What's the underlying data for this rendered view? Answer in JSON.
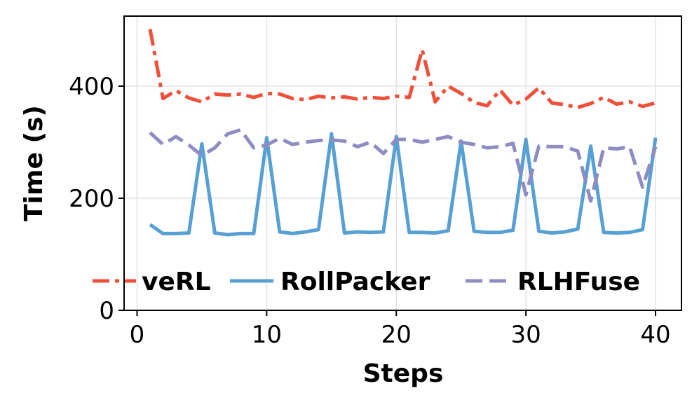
{
  "chart_data": {
    "type": "line",
    "title": "",
    "xlabel": "Steps",
    "ylabel": "Time (s)",
    "xlim": [
      -1,
      42
    ],
    "ylim": [
      0,
      525
    ],
    "xticks": [
      0,
      10,
      20,
      30,
      40
    ],
    "yticks": [
      0,
      200,
      400
    ],
    "grid": true,
    "legend_position": "lower-center",
    "x": [
      1,
      2,
      3,
      4,
      5,
      6,
      7,
      8,
      9,
      10,
      11,
      12,
      13,
      14,
      15,
      16,
      17,
      18,
      19,
      20,
      21,
      22,
      23,
      24,
      25,
      26,
      27,
      28,
      29,
      30,
      31,
      32,
      33,
      34,
      35,
      36,
      37,
      38,
      39,
      40
    ],
    "series": [
      {
        "name": "veRL",
        "color": "#f05039",
        "dash": "dashdot",
        "values": [
          502,
          378,
          392,
          379,
          372,
          386,
          384,
          386,
          380,
          387,
          386,
          378,
          376,
          382,
          379,
          381,
          377,
          380,
          378,
          382,
          380,
          465,
          372,
          400,
          387,
          371,
          365,
          393,
          366,
          377,
          397,
          370,
          367,
          362,
          369,
          380,
          368,
          372,
          364,
          370
        ]
      },
      {
        "name": "RollPacker",
        "color": "#56a0d3",
        "dash": "solid",
        "values": [
          153,
          137,
          137,
          138,
          297,
          138,
          135,
          137,
          137,
          308,
          140,
          137,
          140,
          144,
          315,
          138,
          140,
          139,
          140,
          310,
          139,
          139,
          138,
          142,
          302,
          141,
          139,
          139,
          143,
          305,
          141,
          138,
          140,
          145,
          293,
          139,
          138,
          139,
          144,
          308
        ]
      },
      {
        "name": "RLHFuse",
        "color": "#8e8cc2",
        "dash": "dashed",
        "values": [
          317,
          296,
          310,
          295,
          276,
          290,
          315,
          322,
          290,
          295,
          307,
          296,
          300,
          303,
          304,
          302,
          292,
          300,
          280,
          305,
          305,
          300,
          305,
          310,
          300,
          296,
          290,
          292,
          298,
          206,
          293,
          292,
          292,
          284,
          195,
          290,
          288,
          292,
          220,
          292
        ]
      }
    ]
  }
}
